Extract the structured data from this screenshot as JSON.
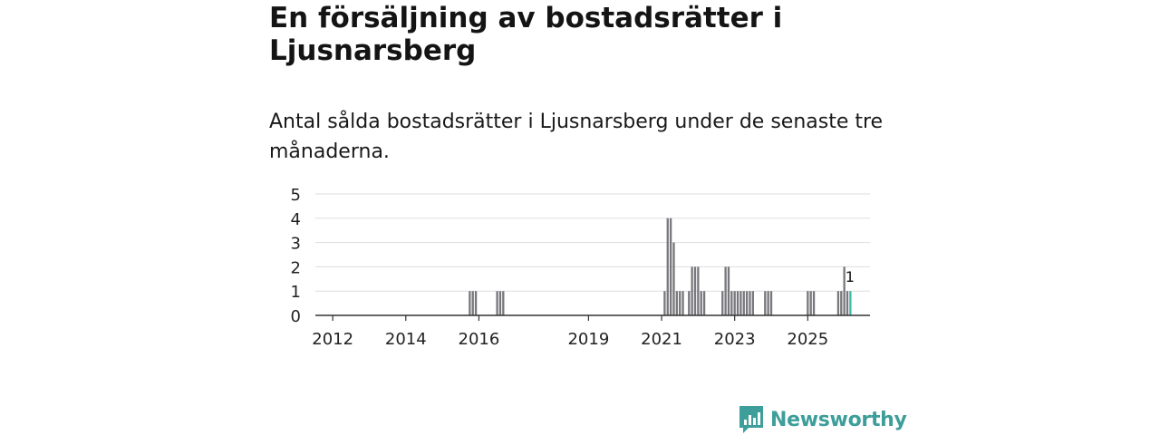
{
  "title": "En försäljning av bostadsrätter i Ljusnarsberg",
  "subtitle": "Antal sålda bostadsrätter i Ljusnarsberg under de senaste tre månaderna.",
  "brand": {
    "name": "Newsworthy",
    "color": "#3d9e9a"
  },
  "colors": {
    "bar": "#77777c",
    "highlight": "#3fb8a8",
    "grid": "#dddddd",
    "axis": "#333333"
  },
  "chart_data": {
    "type": "bar",
    "title": "En försäljning av bostadsrätter i Ljusnarsberg",
    "xlabel": "",
    "ylabel": "",
    "ylim": [
      0,
      5
    ],
    "yticks": [
      0,
      1,
      2,
      3,
      4,
      5
    ],
    "xticks": [
      "2012",
      "2014",
      "2016",
      "2019",
      "2021",
      "2023",
      "2025"
    ],
    "highlight_label": "1",
    "categories": [
      "2011-07",
      "2011-08",
      "2011-09",
      "2011-10",
      "2011-11",
      "2011-12",
      "2012-01",
      "2012-02",
      "2012-03",
      "2012-04",
      "2012-05",
      "2012-06",
      "2012-07",
      "2012-08",
      "2012-09",
      "2012-10",
      "2012-11",
      "2012-12",
      "2013-01",
      "2013-02",
      "2013-03",
      "2013-04",
      "2013-05",
      "2013-06",
      "2013-07",
      "2013-08",
      "2013-09",
      "2013-10",
      "2013-11",
      "2013-12",
      "2014-01",
      "2014-02",
      "2014-03",
      "2014-04",
      "2014-05",
      "2014-06",
      "2014-07",
      "2014-08",
      "2014-09",
      "2014-10",
      "2014-11",
      "2014-12",
      "2015-01",
      "2015-02",
      "2015-03",
      "2015-04",
      "2015-05",
      "2015-06",
      "2015-07",
      "2015-08",
      "2015-09",
      "2015-10",
      "2015-11",
      "2015-12",
      "2016-01",
      "2016-02",
      "2016-03",
      "2016-04",
      "2016-05",
      "2016-06",
      "2016-07",
      "2016-08",
      "2016-09",
      "2016-10",
      "2016-11",
      "2016-12",
      "2017-01",
      "2017-02",
      "2017-03",
      "2017-04",
      "2017-05",
      "2017-06",
      "2017-07",
      "2017-08",
      "2017-09",
      "2017-10",
      "2017-11",
      "2017-12",
      "2018-01",
      "2018-02",
      "2018-03",
      "2018-04",
      "2018-05",
      "2018-06",
      "2018-07",
      "2018-08",
      "2018-09",
      "2018-10",
      "2018-11",
      "2018-12",
      "2019-01",
      "2019-02",
      "2019-03",
      "2019-04",
      "2019-05",
      "2019-06",
      "2019-07",
      "2019-08",
      "2019-09",
      "2019-10",
      "2019-11",
      "2019-12",
      "2020-01",
      "2020-02",
      "2020-03",
      "2020-04",
      "2020-05",
      "2020-06",
      "2020-07",
      "2020-08",
      "2020-09",
      "2020-10",
      "2020-11",
      "2020-12",
      "2021-01",
      "2021-02",
      "2021-03",
      "2021-04",
      "2021-05",
      "2021-06",
      "2021-07",
      "2021-08",
      "2021-09",
      "2021-10",
      "2021-11",
      "2021-12",
      "2022-01",
      "2022-02",
      "2022-03",
      "2022-04",
      "2022-05",
      "2022-06",
      "2022-07",
      "2022-08",
      "2022-09",
      "2022-10",
      "2022-11",
      "2022-12",
      "2023-01",
      "2023-02",
      "2023-03",
      "2023-04",
      "2023-05",
      "2023-06",
      "2023-07",
      "2023-08",
      "2023-09",
      "2023-10",
      "2023-11",
      "2023-12",
      "2024-01",
      "2024-02",
      "2024-03",
      "2024-04",
      "2024-05",
      "2024-06",
      "2024-07",
      "2024-08",
      "2024-09",
      "2024-10",
      "2024-11",
      "2024-12",
      "2025-01",
      "2025-02",
      "2025-03",
      "2025-04",
      "2025-05",
      "2025-06",
      "2025-07",
      "2025-08",
      "2025-09",
      "2025-10",
      "2025-11",
      "2025-12",
      "2026-01",
      "2026-02",
      "2026-03"
    ],
    "values": [
      0,
      0,
      0,
      0,
      0,
      0,
      0,
      0,
      0,
      0,
      0,
      0,
      0,
      0,
      0,
      0,
      0,
      0,
      0,
      0,
      0,
      0,
      0,
      0,
      0,
      0,
      0,
      0,
      0,
      0,
      0,
      0,
      0,
      0,
      0,
      0,
      0,
      0,
      0,
      0,
      0,
      0,
      0,
      0,
      0,
      0,
      0,
      0,
      0,
      0,
      0,
      1,
      1,
      1,
      0,
      0,
      0,
      0,
      0,
      0,
      1,
      1,
      1,
      0,
      0,
      0,
      0,
      0,
      0,
      0,
      0,
      0,
      0,
      0,
      0,
      0,
      0,
      0,
      0,
      0,
      0,
      0,
      0,
      0,
      0,
      0,
      0,
      0,
      0,
      0,
      0,
      0,
      0,
      0,
      0,
      0,
      0,
      0,
      0,
      0,
      0,
      0,
      0,
      0,
      0,
      0,
      0,
      0,
      0,
      0,
      0,
      0,
      0,
      0,
      0,
      1,
      4,
      4,
      3,
      1,
      1,
      1,
      0,
      1,
      2,
      2,
      2,
      1,
      1,
      0,
      0,
      0,
      0,
      0,
      1,
      2,
      2,
      1,
      1,
      1,
      1,
      1,
      1,
      1,
      1,
      0,
      0,
      0,
      1,
      1,
      1,
      0,
      0,
      0,
      0,
      0,
      0,
      0,
      0,
      0,
      0,
      0,
      1,
      1,
      1,
      0,
      0,
      0,
      0,
      0,
      0,
      0,
      1,
      1,
      2,
      1,
      1
    ],
    "highlight_index": 176
  }
}
